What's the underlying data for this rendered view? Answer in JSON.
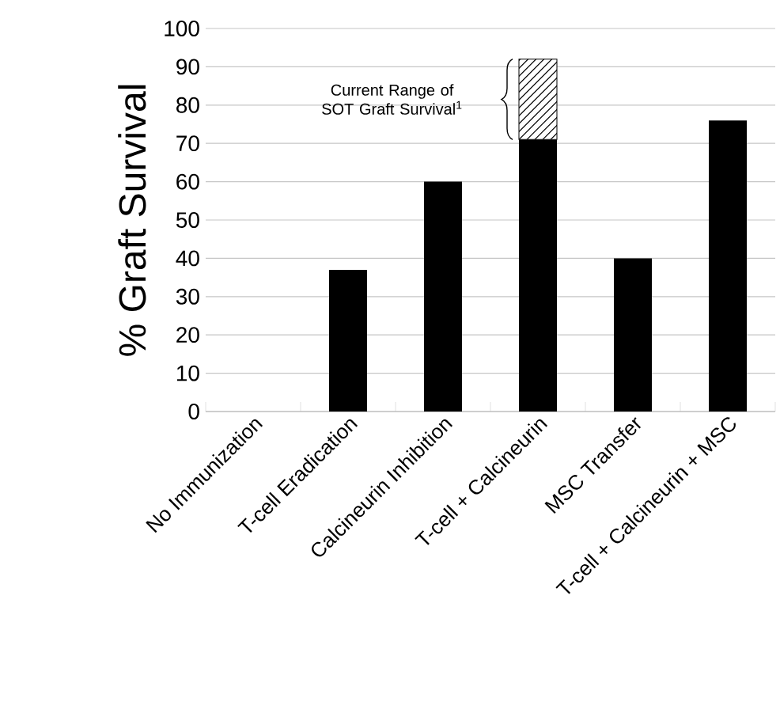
{
  "chart_data": {
    "type": "bar",
    "ylabel": "% Graft Survival",
    "categories": [
      "No Immunization",
      "T-cell Eradication",
      "Calcineurin Inhibition",
      "T-cell + Calcineurin",
      "MSC Transfer",
      "T-cell + Calcineurin + MSC"
    ],
    "stacked": true,
    "series": [
      {
        "color": "#000000",
        "values": [
          0,
          37,
          60,
          71,
          40,
          76
        ]
      },
      {
        "color": "#000000",
        "values": [
          null,
          null,
          null,
          21,
          null,
          null
        ]
      }
    ],
    "ylim": [
      0,
      100
    ],
    "yticks": [
      0,
      10,
      20,
      30,
      40,
      50,
      60,
      70,
      80,
      90,
      100
    ],
    "grid": "y",
    "annotations": [
      "Current Range of SOT Graft Survival$^{1}$"
    ]
  }
}
